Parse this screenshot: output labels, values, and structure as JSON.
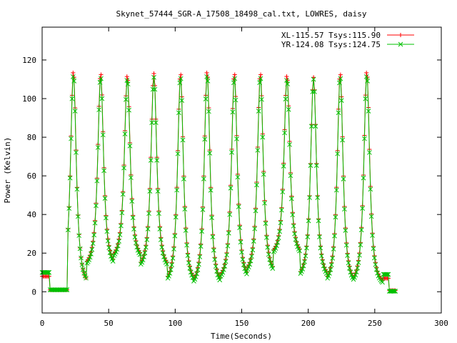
{
  "chart_data": {
    "type": "line",
    "title": "Skynet_57444_SGR-A_17508_18498_cal.txt, LOWRES, daisy",
    "xlabel": "Time(Seconds)",
    "ylabel": "Power (Kelvin)",
    "xlim": [
      0,
      300
    ],
    "ylim": [
      -11,
      137
    ],
    "xticks": [
      0,
      50,
      100,
      150,
      200,
      250,
      300
    ],
    "yticks": [
      0,
      20,
      40,
      60,
      80,
      100,
      120
    ],
    "grid": false,
    "legend_position": "top-right",
    "series": [
      {
        "name": "XL-115.57 Tsys:115.90",
        "color": "#ff0000",
        "marker": "plus",
        "baseline_start": 8,
        "baseline_end": 7,
        "peaks": [
          {
            "x": 23.5,
            "y": 114
          },
          {
            "x": 44,
            "y": 113
          },
          {
            "x": 64,
            "y": 112
          },
          {
            "x": 84,
            "y": 113
          },
          {
            "x": 104,
            "y": 113
          },
          {
            "x": 124,
            "y": 114
          },
          {
            "x": 144.5,
            "y": 113
          },
          {
            "x": 164,
            "y": 113
          },
          {
            "x": 184,
            "y": 112
          },
          {
            "x": 204,
            "y": 111
          },
          {
            "x": 224,
            "y": 113
          },
          {
            "x": 244,
            "y": 114
          }
        ],
        "troughs": [
          1,
          11,
          15,
          10,
          2,
          1,
          4,
          7,
          17,
          5,
          2,
          2
        ]
      },
      {
        "name": "YR-124.08 Tsys:124.75",
        "color": "#00c000",
        "marker": "cross",
        "baseline_start": 10,
        "baseline_end": 9,
        "peaks": [
          {
            "x": 23.5,
            "y": 112
          },
          {
            "x": 44,
            "y": 111
          },
          {
            "x": 64,
            "y": 110
          },
          {
            "x": 84,
            "y": 111
          },
          {
            "x": 104,
            "y": 111
          },
          {
            "x": 124,
            "y": 112
          },
          {
            "x": 144.5,
            "y": 111
          },
          {
            "x": 164,
            "y": 111
          },
          {
            "x": 184,
            "y": 110
          },
          {
            "x": 204,
            "y": 110
          },
          {
            "x": 224,
            "y": 111
          },
          {
            "x": 244,
            "y": 112
          }
        ],
        "troughs": [
          1,
          10,
          14,
          9,
          1,
          0,
          3,
          6,
          16,
          4,
          1,
          1
        ]
      }
    ]
  }
}
